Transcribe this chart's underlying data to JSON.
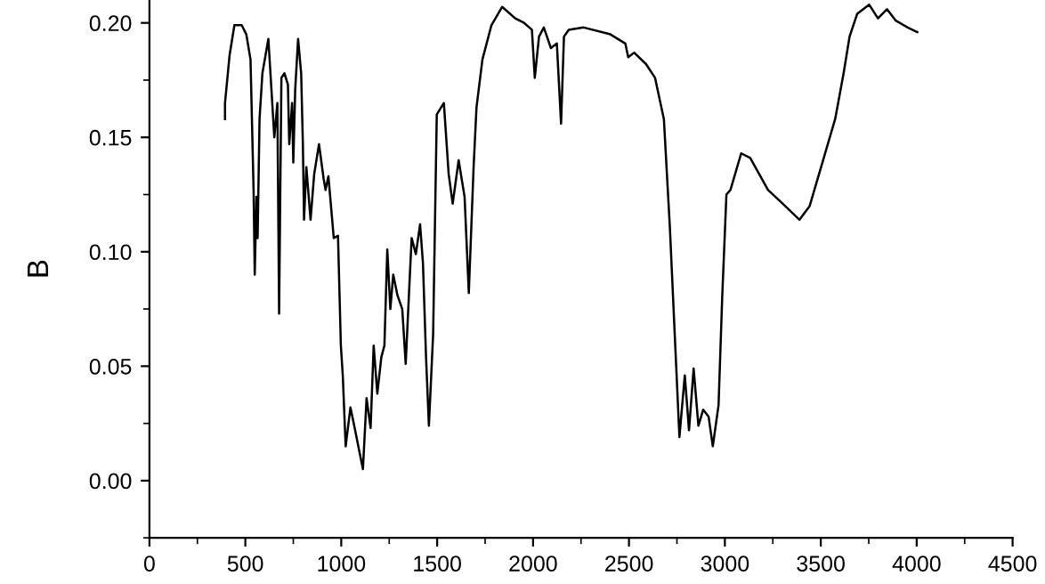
{
  "chart_data": {
    "type": "line",
    "ylabel": "B",
    "x": [
      394,
      394,
      418,
      443,
      481,
      505,
      527,
      543,
      549,
      558,
      564,
      574,
      589,
      620,
      636,
      651,
      667,
      676,
      688,
      704,
      722,
      729,
      744,
      750,
      760,
      775,
      791,
      800,
      806,
      818,
      840,
      859,
      884,
      908,
      918,
      933,
      961,
      983,
      998,
      1008,
      1023,
      1048,
      1070,
      1113,
      1132,
      1153,
      1169,
      1188,
      1209,
      1225,
      1240,
      1256,
      1271,
      1293,
      1318,
      1336,
      1355,
      1367,
      1389,
      1411,
      1426,
      1442,
      1457,
      1479,
      1498,
      1535,
      1560,
      1581,
      1612,
      1643,
      1665,
      1690,
      1705,
      1736,
      1783,
      1839,
      1907,
      1953,
      1994,
      2009,
      2031,
      2056,
      2093,
      2124,
      2146,
      2161,
      2186,
      2264,
      2403,
      2481,
      2496,
      2527,
      2589,
      2636,
      2682,
      2713,
      2744,
      2763,
      2791,
      2813,
      2837,
      2862,
      2887,
      2915,
      2937,
      2967,
      2986,
      3008,
      3029,
      3085,
      3132,
      3225,
      3302,
      3389,
      3442,
      3519,
      3575,
      3619,
      3650,
      3690,
      3752,
      3798,
      3845,
      3891,
      3953,
      4003
    ],
    "series": [
      {
        "color": "#000000",
        "values": [
          0.158,
          0.165,
          0.186,
          0.199,
          0.199,
          0.195,
          0.184,
          0.127,
          0.09,
          0.124,
          0.106,
          0.158,
          0.178,
          0.193,
          0.171,
          0.15,
          0.165,
          0.073,
          0.176,
          0.178,
          0.173,
          0.147,
          0.165,
          0.139,
          0.171,
          0.193,
          0.178,
          0.147,
          0.114,
          0.137,
          0.114,
          0.134,
          0.147,
          0.132,
          0.127,
          0.133,
          0.106,
          0.107,
          0.059,
          0.046,
          0.015,
          0.032,
          0.023,
          0.005,
          0.036,
          0.023,
          0.059,
          0.038,
          0.054,
          0.059,
          0.101,
          0.075,
          0.09,
          0.081,
          0.075,
          0.051,
          0.085,
          0.106,
          0.099,
          0.112,
          0.095,
          0.054,
          0.024,
          0.064,
          0.16,
          0.165,
          0.134,
          0.121,
          0.14,
          0.124,
          0.082,
          0.137,
          0.163,
          0.184,
          0.199,
          0.207,
          0.202,
          0.2,
          0.197,
          0.176,
          0.194,
          0.198,
          0.189,
          0.191,
          0.156,
          0.194,
          0.197,
          0.198,
          0.195,
          0.191,
          0.185,
          0.187,
          0.182,
          0.176,
          0.158,
          0.111,
          0.054,
          0.019,
          0.046,
          0.022,
          0.049,
          0.024,
          0.031,
          0.028,
          0.015,
          0.033,
          0.08,
          0.125,
          0.127,
          0.143,
          0.141,
          0.127,
          0.121,
          0.114,
          0.12,
          0.142,
          0.158,
          0.178,
          0.194,
          0.204,
          0.208,
          0.202,
          0.206,
          0.201,
          0.198,
          0.196
        ]
      }
    ],
    "xlim": [
      0,
      4500
    ],
    "xticks": [
      0,
      500,
      1000,
      1500,
      2000,
      2500,
      3000,
      3500,
      4000,
      4500
    ],
    "ylim": [
      -0.025,
      0.21
    ],
    "yticks": [
      {
        "value": 0,
        "label": "0.00"
      },
      {
        "value": 0.05,
        "label": "0.05"
      },
      {
        "value": 0.1,
        "label": "0.10"
      },
      {
        "value": 0.15,
        "label": "0.15"
      },
      {
        "value": 0.2,
        "label": "0.20"
      }
    ],
    "grid": false,
    "line_style": "solid",
    "marker": "none"
  }
}
